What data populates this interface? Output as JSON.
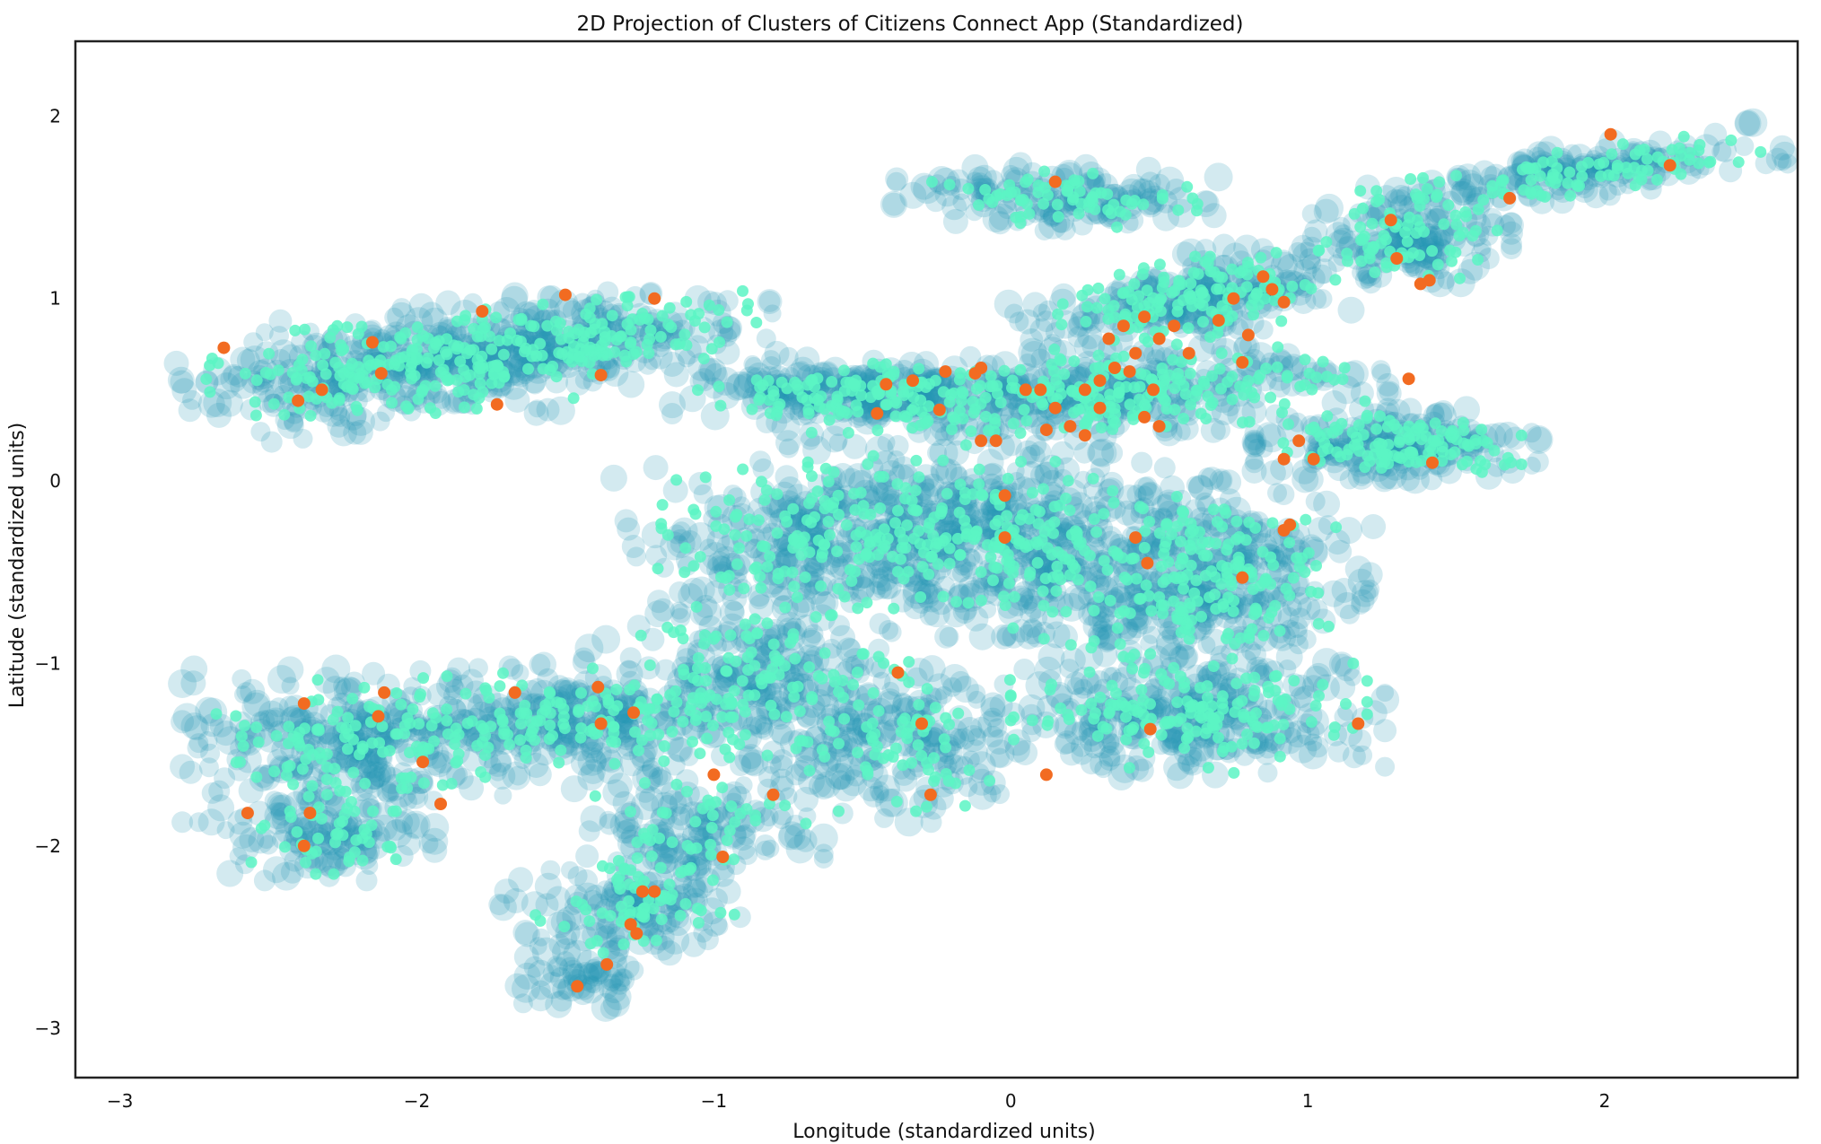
{
  "chart_data": {
    "type": "scatter",
    "title": "2D Projection of Clusters of Citizens Connect App (Standardized)",
    "xlabel": "Longitude (standardized units)",
    "ylabel": "Latitude (standardized units)",
    "xlim": [
      -3.15,
      2.65
    ],
    "ylim": [
      -3.27,
      2.41
    ],
    "x_ticks": [
      -3,
      -2,
      -1,
      0,
      1,
      2
    ],
    "y_ticks": [
      -3,
      -2,
      -1,
      0,
      1,
      2
    ],
    "x_tick_labels": [
      "−3",
      "−2",
      "−1",
      "0",
      "1",
      "2"
    ],
    "y_tick_labels": [
      "−3",
      "−2",
      "−1",
      "0",
      "1",
      "2"
    ],
    "grid": false,
    "legend": "none",
    "colors": {
      "halo": "#2196b4",
      "core": "#5cf5c4",
      "highlight": "#f26b21"
    },
    "series": [
      {
        "role": "halo",
        "regions": [
          {
            "cx": -2.05,
            "cy": 0.62,
            "rx": 0.62,
            "ry": 0.27,
            "angle": 10,
            "n": 340
          },
          {
            "cx": -1.45,
            "cy": 0.78,
            "rx": 0.55,
            "ry": 0.2,
            "angle": 8,
            "n": 220
          },
          {
            "cx": 0.15,
            "cy": 1.55,
            "rx": 0.45,
            "ry": 0.15,
            "angle": -4,
            "n": 150
          },
          {
            "cx": 0.62,
            "cy": 1.0,
            "rx": 0.5,
            "ry": 0.2,
            "angle": 20,
            "n": 240
          },
          {
            "cx": 0.25,
            "cy": 0.48,
            "rx": 0.85,
            "ry": 0.2,
            "angle": 5,
            "n": 380
          },
          {
            "cx": -0.6,
            "cy": 0.5,
            "rx": 0.45,
            "ry": 0.15,
            "angle": 0,
            "n": 170
          },
          {
            "cx": 1.3,
            "cy": 0.2,
            "rx": 0.4,
            "ry": 0.16,
            "angle": 0,
            "n": 200
          },
          {
            "cx": 1.35,
            "cy": 1.35,
            "rx": 0.28,
            "ry": 0.22,
            "angle": 0,
            "n": 140
          },
          {
            "cx": 1.95,
            "cy": 1.7,
            "rx": 0.55,
            "ry": 0.12,
            "angle": 12,
            "n": 170
          },
          {
            "cx": -0.55,
            "cy": -0.3,
            "rx": 0.6,
            "ry": 0.4,
            "angle": 10,
            "n": 420
          },
          {
            "cx": 0.1,
            "cy": -0.35,
            "rx": 0.45,
            "ry": 0.42,
            "angle": 0,
            "n": 300
          },
          {
            "cx": 0.65,
            "cy": -0.55,
            "rx": 0.45,
            "ry": 0.45,
            "angle": -20,
            "n": 380
          },
          {
            "cx": 0.6,
            "cy": -1.3,
            "rx": 0.55,
            "ry": 0.28,
            "angle": 0,
            "n": 300
          },
          {
            "cx": -0.8,
            "cy": -1.1,
            "rx": 0.4,
            "ry": 0.45,
            "angle": 40,
            "n": 240
          },
          {
            "cx": -1.5,
            "cy": -1.3,
            "rx": 0.6,
            "ry": 0.25,
            "angle": 5,
            "n": 300
          },
          {
            "cx": -2.25,
            "cy": -1.45,
            "rx": 0.45,
            "ry": 0.35,
            "angle": 0,
            "n": 260
          },
          {
            "cx": -2.3,
            "cy": -1.95,
            "rx": 0.3,
            "ry": 0.2,
            "angle": 0,
            "n": 110
          },
          {
            "cx": -1.25,
            "cy": -2.3,
            "rx": 0.35,
            "ry": 0.25,
            "angle": 30,
            "n": 160
          },
          {
            "cx": -1.45,
            "cy": -2.75,
            "rx": 0.2,
            "ry": 0.15,
            "angle": 0,
            "n": 60
          },
          {
            "cx": -1.05,
            "cy": -1.85,
            "rx": 0.35,
            "ry": 0.25,
            "angle": 0,
            "n": 120
          },
          {
            "cx": -0.35,
            "cy": -1.45,
            "rx": 0.35,
            "ry": 0.35,
            "angle": 0,
            "n": 160
          }
        ]
      },
      {
        "role": "core",
        "regions": [
          {
            "cx": -2.05,
            "cy": 0.62,
            "rx": 0.55,
            "ry": 0.22,
            "angle": 10,
            "n": 180
          },
          {
            "cx": -1.45,
            "cy": 0.78,
            "rx": 0.5,
            "ry": 0.17,
            "angle": 8,
            "n": 130
          },
          {
            "cx": 0.15,
            "cy": 1.55,
            "rx": 0.4,
            "ry": 0.12,
            "angle": -4,
            "n": 70
          },
          {
            "cx": 0.62,
            "cy": 1.0,
            "rx": 0.45,
            "ry": 0.18,
            "angle": 20,
            "n": 140
          },
          {
            "cx": 0.25,
            "cy": 0.48,
            "rx": 0.78,
            "ry": 0.17,
            "angle": 5,
            "n": 240
          },
          {
            "cx": -0.6,
            "cy": 0.5,
            "rx": 0.4,
            "ry": 0.12,
            "angle": 0,
            "n": 80
          },
          {
            "cx": 1.3,
            "cy": 0.2,
            "rx": 0.35,
            "ry": 0.13,
            "angle": 0,
            "n": 120
          },
          {
            "cx": 1.35,
            "cy": 1.35,
            "rx": 0.24,
            "ry": 0.2,
            "angle": 0,
            "n": 70
          },
          {
            "cx": 1.95,
            "cy": 1.7,
            "rx": 0.5,
            "ry": 0.1,
            "angle": 12,
            "n": 90
          },
          {
            "cx": -0.55,
            "cy": -0.3,
            "rx": 0.55,
            "ry": 0.35,
            "angle": 10,
            "n": 200
          },
          {
            "cx": 0.1,
            "cy": -0.35,
            "rx": 0.4,
            "ry": 0.38,
            "angle": 0,
            "n": 130
          },
          {
            "cx": 0.65,
            "cy": -0.55,
            "rx": 0.4,
            "ry": 0.4,
            "angle": -20,
            "n": 170
          },
          {
            "cx": 0.6,
            "cy": -1.3,
            "rx": 0.5,
            "ry": 0.25,
            "angle": 0,
            "n": 150
          },
          {
            "cx": -0.8,
            "cy": -1.1,
            "rx": 0.35,
            "ry": 0.4,
            "angle": 40,
            "n": 110
          },
          {
            "cx": -1.5,
            "cy": -1.3,
            "rx": 0.55,
            "ry": 0.22,
            "angle": 5,
            "n": 140
          },
          {
            "cx": -2.25,
            "cy": -1.45,
            "rx": 0.4,
            "ry": 0.3,
            "angle": 0,
            "n": 110
          },
          {
            "cx": -2.3,
            "cy": -1.95,
            "rx": 0.25,
            "ry": 0.17,
            "angle": 0,
            "n": 40
          },
          {
            "cx": -1.25,
            "cy": -2.3,
            "rx": 0.3,
            "ry": 0.22,
            "angle": 30,
            "n": 70
          },
          {
            "cx": -1.05,
            "cy": -1.85,
            "rx": 0.3,
            "ry": 0.22,
            "angle": 0,
            "n": 40
          },
          {
            "cx": -0.35,
            "cy": -1.45,
            "rx": 0.3,
            "ry": 0.3,
            "angle": 0,
            "n": 60
          }
        ]
      },
      {
        "role": "highlight",
        "points": [
          [
            -2.65,
            0.73
          ],
          [
            -2.4,
            0.44
          ],
          [
            -2.32,
            0.5
          ],
          [
            -2.15,
            0.76
          ],
          [
            -2.12,
            0.59
          ],
          [
            -1.78,
            0.93
          ],
          [
            -1.73,
            0.42
          ],
          [
            -1.5,
            1.02
          ],
          [
            -1.38,
            0.58
          ],
          [
            -1.2,
            1.0
          ],
          [
            0.15,
            1.64
          ],
          [
            -0.45,
            0.37
          ],
          [
            -0.42,
            0.53
          ],
          [
            -0.33,
            0.55
          ],
          [
            -0.24,
            0.39
          ],
          [
            -0.22,
            0.6
          ],
          [
            -0.12,
            0.59
          ],
          [
            -0.1,
            0.62
          ],
          [
            -0.1,
            0.22
          ],
          [
            -0.05,
            0.22
          ],
          [
            0.05,
            0.5
          ],
          [
            0.1,
            0.5
          ],
          [
            0.15,
            0.4
          ],
          [
            0.2,
            0.3
          ],
          [
            0.25,
            0.5
          ],
          [
            0.3,
            0.55
          ],
          [
            0.33,
            0.78
          ],
          [
            0.35,
            0.62
          ],
          [
            0.38,
            0.85
          ],
          [
            0.4,
            0.6
          ],
          [
            0.42,
            0.7
          ],
          [
            0.45,
            0.9
          ],
          [
            0.48,
            0.5
          ],
          [
            0.5,
            0.78
          ],
          [
            0.55,
            0.85
          ],
          [
            0.6,
            0.7
          ],
          [
            0.7,
            0.88
          ],
          [
            0.75,
            1.0
          ],
          [
            0.78,
            0.65
          ],
          [
            0.8,
            0.8
          ],
          [
            0.85,
            1.12
          ],
          [
            0.88,
            1.05
          ],
          [
            0.92,
            0.98
          ],
          [
            0.3,
            0.4
          ],
          [
            0.25,
            0.25
          ],
          [
            0.12,
            0.28
          ],
          [
            0.45,
            0.35
          ],
          [
            0.5,
            0.3
          ],
          [
            -0.02,
            -0.08
          ],
          [
            -0.02,
            -0.31
          ],
          [
            0.92,
            0.12
          ],
          [
            0.97,
            0.22
          ],
          [
            1.02,
            0.12
          ],
          [
            1.42,
            0.1
          ],
          [
            0.42,
            -0.31
          ],
          [
            0.46,
            -0.45
          ],
          [
            0.78,
            -0.53
          ],
          [
            0.92,
            -0.27
          ],
          [
            0.94,
            -0.24
          ],
          [
            1.34,
            0.56
          ],
          [
            1.28,
            1.43
          ],
          [
            1.3,
            1.22
          ],
          [
            1.38,
            1.08
          ],
          [
            1.41,
            1.1
          ],
          [
            1.68,
            1.55
          ],
          [
            2.02,
            1.9
          ],
          [
            2.22,
            1.73
          ],
          [
            -0.38,
            -1.05
          ],
          [
            -0.3,
            -1.33
          ],
          [
            -0.27,
            -1.72
          ],
          [
            0.12,
            -1.61
          ],
          [
            0.47,
            -1.36
          ],
          [
            1.17,
            -1.33
          ],
          [
            -1.0,
            -1.61
          ],
          [
            -0.97,
            -2.06
          ],
          [
            -0.8,
            -1.72
          ],
          [
            -1.2,
            -2.25
          ],
          [
            -1.24,
            -2.25
          ],
          [
            -1.27,
            -1.27
          ],
          [
            -1.39,
            -1.13
          ],
          [
            -1.38,
            -1.33
          ],
          [
            -1.67,
            -1.16
          ],
          [
            -1.98,
            -1.54
          ],
          [
            -1.92,
            -1.77
          ],
          [
            -2.11,
            -1.16
          ],
          [
            -2.13,
            -1.29
          ],
          [
            -2.38,
            -1.22
          ],
          [
            -2.36,
            -1.82
          ],
          [
            -2.38,
            -2.0
          ],
          [
            -2.57,
            -1.82
          ],
          [
            -1.26,
            -2.48
          ],
          [
            -1.36,
            -2.65
          ],
          [
            -1.46,
            -2.77
          ],
          [
            -1.28,
            -2.43
          ]
        ]
      }
    ]
  }
}
